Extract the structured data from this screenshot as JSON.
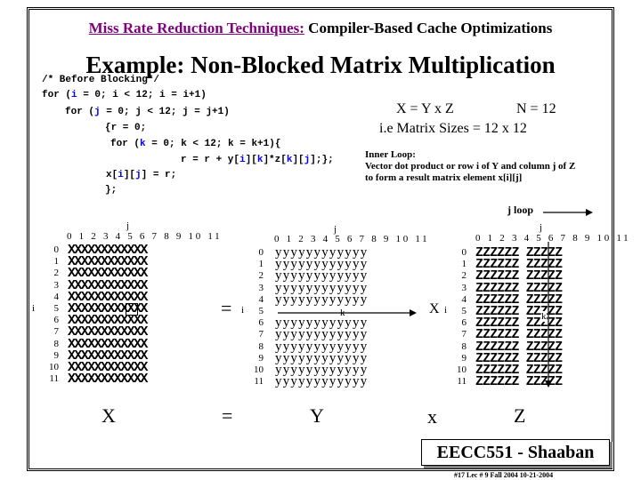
{
  "header": {
    "highlight": "Miss Rate Reduction Techniques:",
    "rest": "Compiler-Based Cache Optimizations"
  },
  "title": "Example:  Non-Blocked Matrix Multiplication",
  "code": {
    "comment": "/* Before Blocking*/",
    "line1": [
      "for (",
      "i",
      " = 0; i < 12; i = i+1)"
    ],
    "line2": [
      "for (",
      "j",
      " = 0; j < 12; j = j+1)"
    ],
    "line3": "{r = 0;",
    "line4": [
      "for (",
      "k",
      " = 0; k < 12; k = k+1){"
    ],
    "line5": [
      "r = r + y[",
      "i",
      "][",
      "k",
      "]*z[",
      "k",
      "][",
      "j",
      "];};"
    ],
    "line6": [
      "x[",
      "i",
      "][",
      "j",
      "] = r;"
    ],
    "line7": "};"
  },
  "equation": {
    "formula": "X = Y x Z",
    "n": "N = 12",
    "sizes": "i.e Matrix Sizes = 12 x 12"
  },
  "inner_loop": [
    "Inner Loop:",
    "Vector dot product or row i of Y and column j of Z",
    "to form a result matrix element x[i][j]"
  ],
  "j_loop": "j loop",
  "column_labels": "0 1 2 3 4 5 6 7 8 9 10 11",
  "row_labels": [
    "0",
    "1",
    "2",
    "3",
    "4",
    "5",
    "6",
    "7",
    "8",
    "9",
    "10",
    "11"
  ],
  "index_labels": {
    "i": "i",
    "j": "j",
    "k": "k"
  },
  "matrices": {
    "x_rows": [
      "XXXXXXXXXXXX",
      "XXXXXXXXXXXX",
      "XXXXXXXXXXXX",
      "XXXXXXXXXXXX",
      "XXXXXXXXXXXX",
      "XXXXXXXXXXXX",
      "XXXXXXXXXXXX",
      "XXXXXXXXXXXX",
      "XXXXXXXXXXXX",
      "XXXXXXXXXXXX",
      "XXXXXXXXXXXX",
      "XXXXXXXXXXXX"
    ],
    "y_rows": [
      "yyyyyyyyyyyy",
      "yyyyyyyyyyyy",
      "yyyyyyyyyyyy",
      "yyyyyyyyyyyy",
      "yyyyyyyyyyyy",
      "",
      "yyyyyyyyyyyy",
      "yyyyyyyyyyyy",
      "yyyyyyyyyyyy",
      "yyyyyyyyyyyy",
      "yyyyyyyyyyyy",
      "yyyyyyyyyyyy"
    ],
    "z_rows": [
      "ZZZZZZ ZZZZZ",
      "ZZZZZZ ZZZZZ",
      "ZZZZZZ ZZZZZ",
      "ZZZZZZ ZZZZZ",
      "ZZZZZZ ZZZZZ",
      "ZZZZZZ ZZZZZ",
      "ZZZZZZ ZZZZZ",
      "ZZZZZZ ZZZZZ",
      "ZZZZZZ ZZZZZ",
      "ZZZZZZ ZZZZZ",
      "ZZZZZZ ZZZZZ",
      "ZZZZZZ ZZZZZ"
    ]
  },
  "operators": {
    "equals": "=",
    "times": "X"
  },
  "bottom_labels": {
    "x": "X",
    "eq": "=",
    "y": "Y",
    "times": "x",
    "z": "Z"
  },
  "footer": {
    "title": "EECC551 - Shaaban",
    "sub": "#17   Lec # 9  Fall 2004   10-21-2004"
  }
}
